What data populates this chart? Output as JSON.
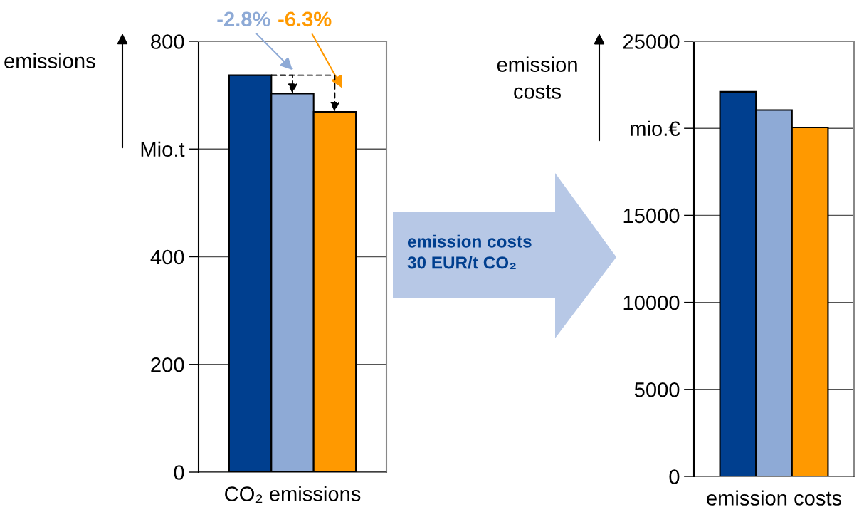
{
  "chart_data": [
    {
      "type": "bar",
      "categories": [
        "CO₂ emissions"
      ],
      "ylabel": "emissions",
      "series": [
        {
          "color": "#003f8f",
          "values": [
            737
          ]
        },
        {
          "color": "#8eaad6",
          "values": [
            703
          ]
        },
        {
          "color": "#ff9900",
          "values": [
            669
          ]
        }
      ],
      "ylim": [
        0,
        800
      ],
      "yticks": [
        0,
        200,
        400,
        {
          "value": 600,
          "label": "Mio.t"
        },
        800
      ],
      "grid": "y",
      "legend": false,
      "annotations": [
        "-2.8%",
        "-6.3%"
      ]
    },
    {
      "type": "bar",
      "categories": [
        "emission costs"
      ],
      "ylabel": "emission\ncosts",
      "series": [
        {
          "color": "#003f8f",
          "values": [
            22100
          ]
        },
        {
          "color": "#8eaad6",
          "values": [
            21050
          ]
        },
        {
          "color": "#ff9900",
          "values": [
            20050
          ]
        }
      ],
      "ylim": [
        0,
        25000
      ],
      "yticks": [
        0,
        5000,
        10000,
        15000,
        {
          "value": 20000,
          "label": "mio.€"
        },
        25000
      ],
      "grid": "y",
      "legend": false,
      "annotations": [
        "emission costs\n30 EUR/t CO₂"
      ]
    }
  ]
}
